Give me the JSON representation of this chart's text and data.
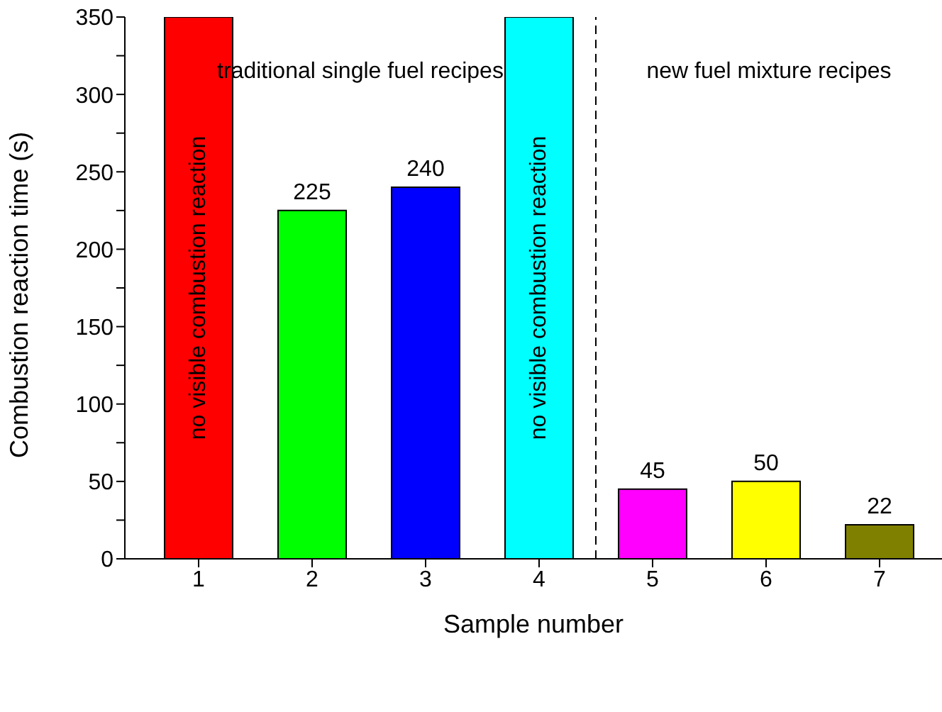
{
  "chart_data": {
    "type": "bar",
    "xlabel": "Sample number",
    "ylabel": "Combustion reaction time (s)",
    "x": [
      1,
      2,
      3,
      4,
      5,
      6,
      7
    ],
    "values": [
      350,
      225,
      240,
      350,
      45,
      50,
      22
    ],
    "colors": [
      "#ff0000",
      "#00ff00",
      "#0000ff",
      "#00ffff",
      "#ff00ff",
      "#ffff00",
      "#808000"
    ],
    "value_labels": [
      "no visible combustion reaction",
      "225",
      "240",
      "no visible combustion reaction",
      "45",
      "50",
      "22"
    ],
    "xlim": [
      0.35,
      7.55
    ],
    "xticks": [
      1,
      2,
      3,
      4,
      5,
      6,
      7
    ],
    "ylim": [
      0,
      350
    ],
    "yticks": [
      0,
      {
        "value": 25,
        "label": null
      },
      50,
      {
        "value": 75,
        "label": null
      },
      100,
      {
        "value": 125,
        "label": null
      },
      150,
      {
        "value": 175,
        "label": null
      },
      200,
      {
        "value": 225,
        "label": null
      },
      250,
      {
        "value": 275,
        "label": null
      },
      300,
      {
        "value": 325,
        "label": null
      },
      350
    ],
    "ref_lines": [
      {
        "axis": "x",
        "value": 4.5,
        "label": null,
        "color": "#000000",
        "line_style": "dashed"
      }
    ],
    "annotations": [
      "traditional single fuel recipes",
      "new fuel mixture recipes"
    ],
    "grid": false,
    "legend": false
  }
}
